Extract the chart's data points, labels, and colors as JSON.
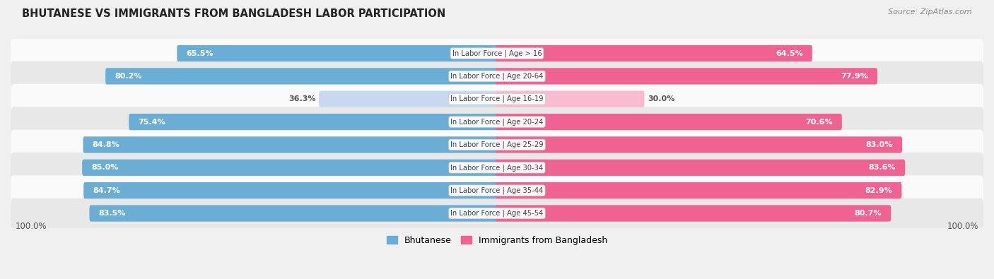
{
  "title": "BHUTANESE VS IMMIGRANTS FROM BANGLADESH LABOR PARTICIPATION",
  "source": "Source: ZipAtlas.com",
  "categories": [
    "In Labor Force | Age > 16",
    "In Labor Force | Age 20-64",
    "In Labor Force | Age 16-19",
    "In Labor Force | Age 20-24",
    "In Labor Force | Age 25-29",
    "In Labor Force | Age 30-34",
    "In Labor Force | Age 35-44",
    "In Labor Force | Age 45-54"
  ],
  "bhutanese_values": [
    65.5,
    80.2,
    36.3,
    75.4,
    84.8,
    85.0,
    84.7,
    83.5
  ],
  "bangladesh_values": [
    64.5,
    77.9,
    30.0,
    70.6,
    83.0,
    83.6,
    82.9,
    80.7
  ],
  "bhutanese_color_strong": "#6aaed6",
  "bhutanese_color_light": "#c6d9ee",
  "bangladesh_color_strong": "#f06292",
  "bangladesh_color_light": "#f8bbd0",
  "label_color_white": "#ffffff",
  "label_color_dark": "#555555",
  "bg_color": "#f0f0f0",
  "row_bg_light": "#fafafa",
  "row_bg_mid": "#e8e8e8",
  "legend_blue": "#6aaed6",
  "legend_pink": "#f06292",
  "center_label_color": "#444444",
  "footer_label": "100.0%",
  "max_val": 100.0,
  "threshold": 50.0
}
